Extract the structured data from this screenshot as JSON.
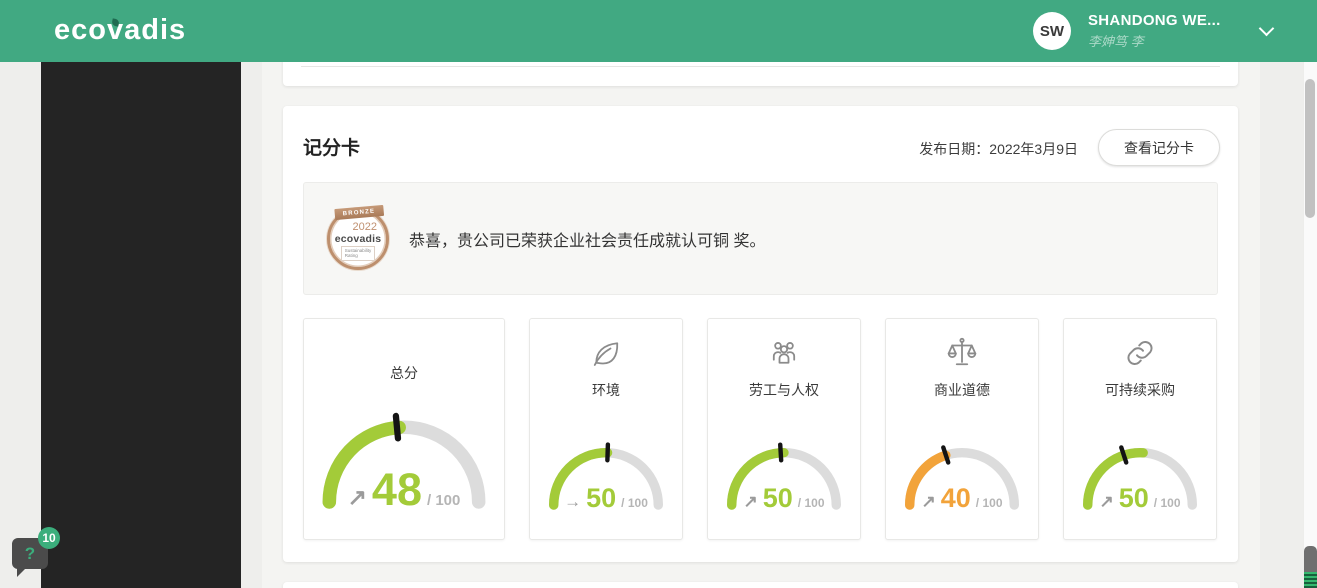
{
  "header": {
    "logo_text": "ecovadis",
    "user": {
      "initials": "SW",
      "name": "SHANDONG WE...",
      "subtitle": "李妽笃 李"
    }
  },
  "scorecard": {
    "title": "记分卡",
    "published": "发布日期：2022年3月9日",
    "view_button": "查看记分卡",
    "banner_message": "恭喜，贵公司已荣获企业社会责任成就认可铜 奖。",
    "medal": {
      "tier": "BRONZE",
      "year": "2022",
      "brand": "ecovadis",
      "tagline_line1": "Sustainability",
      "tagline_line2": "Rating"
    }
  },
  "chart_data": {
    "type": "gauge",
    "max": 100,
    "gauges": [
      {
        "label": "总分",
        "value": 48,
        "max": 100,
        "trend_arrow": "↗",
        "color": "#a3cb39",
        "icon": null,
        "size": "large",
        "fill_fraction": 0.48,
        "needle_fraction": 0.47
      },
      {
        "label": "环境",
        "value": 50,
        "max": 100,
        "trend_arrow": "→",
        "color": "#a3cb39",
        "icon": "leaf",
        "size": "normal",
        "fill_fraction": 0.51,
        "needle_fraction": 0.51
      },
      {
        "label": "劳工与人权",
        "value": 50,
        "max": 100,
        "trend_arrow": "↗",
        "color": "#a3cb39",
        "icon": "people",
        "size": "normal",
        "fill_fraction": 0.5,
        "needle_fraction": 0.48
      },
      {
        "label": "商业道德",
        "value": 40,
        "max": 100,
        "trend_arrow": "↗",
        "color": "#f2a33a",
        "icon": "scales",
        "size": "normal",
        "fill_fraction": 0.4,
        "needle_fraction": 0.4
      },
      {
        "label": "可持续采购",
        "value": 50,
        "max": 100,
        "trend_arrow": "↗",
        "color": "#a3cb39",
        "icon": "chain",
        "size": "normal",
        "fill_fraction": 0.52,
        "needle_fraction": 0.4
      }
    ]
  },
  "help_widget": {
    "icon": "?",
    "badge": "10"
  },
  "colors": {
    "header_green": "#41a982",
    "accent_green": "#3bae7c",
    "lime": "#a3cb39",
    "orange": "#f2a33a",
    "arc_gray": "#dcdcdc",
    "needle_black": "#141414",
    "sidebar_dark": "#242424"
  }
}
